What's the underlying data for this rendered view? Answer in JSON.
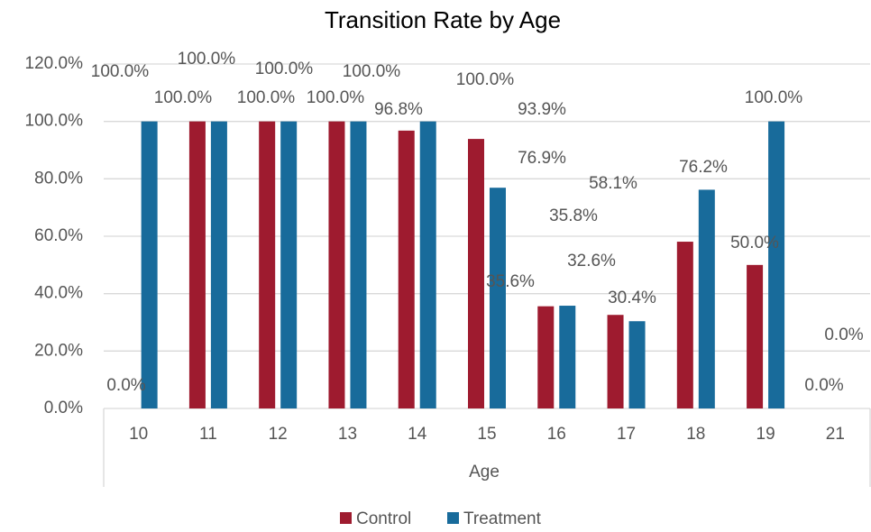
{
  "chart_data": {
    "type": "bar",
    "title": "Transition Rate by Age",
    "x_label": "Age",
    "categories": [
      "10",
      "11",
      "12",
      "13",
      "14",
      "15",
      "16",
      "17",
      "18",
      "19",
      "21"
    ],
    "series": [
      {
        "name": "Control",
        "color": "#9e1b2f",
        "values": [
          0,
          100,
          100,
          100,
          96.8,
          93.9,
          35.6,
          32.6,
          58.1,
          50,
          0
        ],
        "value_labels": [
          "0.0%",
          "100.0%",
          "100.0%",
          "100.0%",
          "96.8%",
          "93.9%",
          "35.6%",
          "32.6%",
          "58.1%",
          "50.0%",
          "0.0%"
        ]
      },
      {
        "name": "Treatment",
        "color": "#186b9b",
        "values": [
          100,
          100,
          100,
          100,
          100,
          76.9,
          35.8,
          30.4,
          76.2,
          100,
          0
        ],
        "value_labels": [
          "100.0%",
          "100.0%",
          "100.0%",
          "100.0%",
          "100.0%",
          "76.9%",
          "35.8%",
          "30.4%",
          "76.2%",
          "100.0%",
          "0.0%"
        ]
      }
    ],
    "ylim": [
      0,
      120
    ],
    "yticks": [
      {
        "value": 0,
        "label": "0.0%"
      },
      {
        "value": 20,
        "label": "20.0%"
      },
      {
        "value": 40,
        "label": "40.0%"
      },
      {
        "value": 60,
        "label": "60.0%"
      },
      {
        "value": 80,
        "label": "80.0%"
      },
      {
        "value": 100,
        "label": "100.0%"
      },
      {
        "value": 120,
        "label": "120.0%"
      }
    ],
    "grid": true,
    "legend": "bottom"
  }
}
